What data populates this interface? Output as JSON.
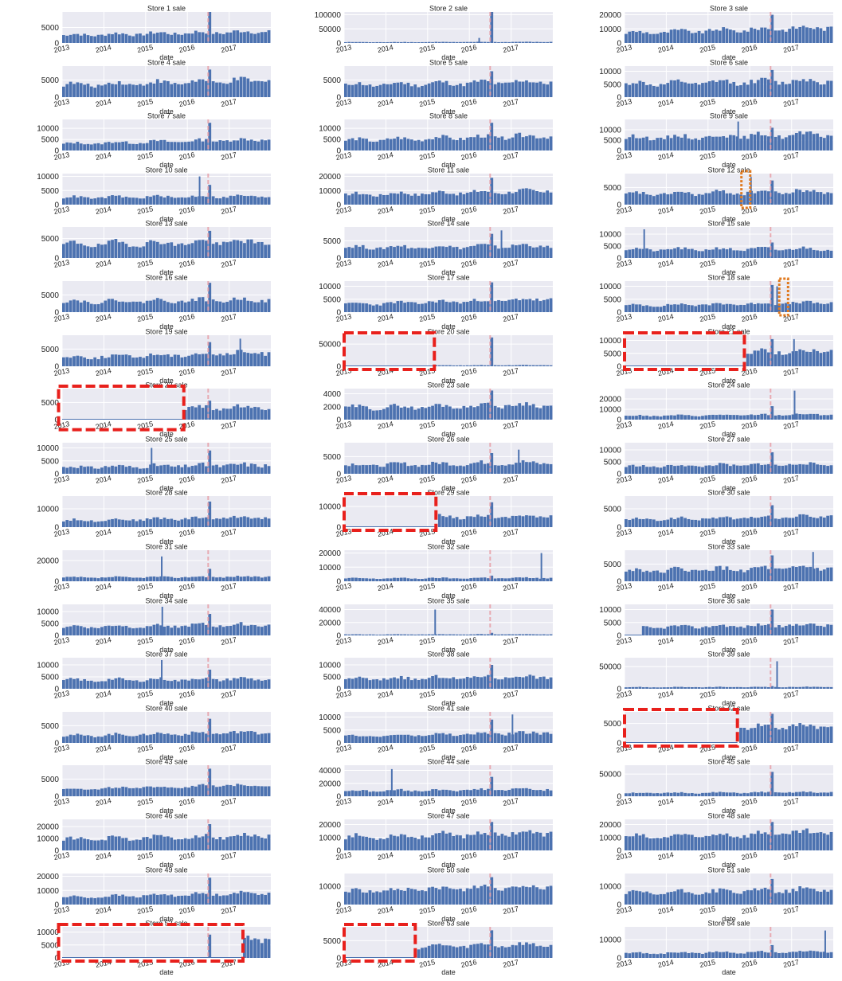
{
  "figure": {
    "colors": {
      "bar": "#4c72b0",
      "plot_bg": "#eaeaf2",
      "grid": "#ffffff",
      "marker": "#e8a0a8",
      "highlight_box": "#e8201c",
      "small_box": "#e07a20"
    }
  },
  "chart_data": {
    "type": "bar",
    "layout": {
      "rows": 18,
      "cols": 3
    },
    "xlabel": "date",
    "xticks": [
      "2013",
      "2014",
      "2015",
      "2016",
      "2017"
    ],
    "xlim": [
      "2013-01-01",
      "2017-12-31"
    ],
    "marker_date": "2016-07-01",
    "panels": [
      {
        "title": "Store 1 sale",
        "ylim": [
          0,
          10000
        ],
        "yticks": [
          0,
          5000
        ],
        "base": 2500,
        "trend": 0.5,
        "peak": 10000,
        "noise": 0.35,
        "spikes": []
      },
      {
        "title": "Store 2 sale",
        "ylim": [
          0,
          110000
        ],
        "yticks": [
          0,
          50000,
          100000
        ],
        "base": 3000,
        "trend": 0.3,
        "peak": 110000,
        "noise": 0.3,
        "spikes": [
          {
            "date": "2016-03-20",
            "value": 18000
          }
        ]
      },
      {
        "title": "Store 3 sale",
        "ylim": [
          0,
          22000
        ],
        "yticks": [
          0,
          10000,
          20000
        ],
        "base": 7000,
        "trend": 0.6,
        "peak": 20000,
        "noise": 0.3,
        "spikes": []
      },
      {
        "title": "Store 4 sale",
        "ylim": [
          0,
          9000
        ],
        "yticks": [
          0,
          5000
        ],
        "base": 3500,
        "trend": 0.4,
        "peak": 8000,
        "noise": 0.3,
        "spikes": []
      },
      {
        "title": "Store 5 sale",
        "ylim": [
          0,
          9000
        ],
        "yticks": [
          0,
          5000
        ],
        "base": 3500,
        "trend": 0.3,
        "peak": 7500,
        "noise": 0.3,
        "spikes": []
      },
      {
        "title": "Store 6 sale",
        "ylim": [
          0,
          12000
        ],
        "yticks": [
          0,
          5000,
          10000
        ],
        "base": 5000,
        "trend": 0.3,
        "peak": 10500,
        "noise": 0.3,
        "spikes": []
      },
      {
        "title": "Store 7 sale",
        "ylim": [
          0,
          14000
        ],
        "yticks": [
          0,
          5000,
          10000
        ],
        "base": 3000,
        "trend": 0.7,
        "peak": 12500,
        "noise": 0.3,
        "spikes": []
      },
      {
        "title": "Store 8 sale",
        "ylim": [
          0,
          14000
        ],
        "yticks": [
          0,
          5000,
          10000
        ],
        "base": 4500,
        "trend": 0.5,
        "peak": 12500,
        "noise": 0.3,
        "spikes": []
      },
      {
        "title": "Store 9 sale",
        "ylim": [
          0,
          15000
        ],
        "yticks": [
          0,
          5000,
          10000
        ],
        "base": 6000,
        "trend": 0.3,
        "peak": 11000,
        "noise": 0.3,
        "spikes": [
          {
            "date": "2015-09-15",
            "value": 14000
          }
        ]
      },
      {
        "title": "Store 10 sale",
        "ylim": [
          0,
          11000
        ],
        "yticks": [
          0,
          5000,
          10000
        ],
        "base": 2500,
        "trend": 0.2,
        "peak": 7000,
        "noise": 0.3,
        "spikes": [
          {
            "date": "2016-04-10",
            "value": 10000
          }
        ]
      },
      {
        "title": "Store 11 sale",
        "ylim": [
          0,
          22000
        ],
        "yticks": [
          0,
          10000,
          20000
        ],
        "base": 7000,
        "trend": 0.4,
        "peak": 19000,
        "noise": 0.3,
        "spikes": []
      },
      {
        "title": "Store 12 sale",
        "ylim": [
          0,
          9000
        ],
        "yticks": [
          0,
          5000
        ],
        "base": 3000,
        "trend": 0.3,
        "peak": 7000,
        "noise": 0.3,
        "spikes": [
          {
            "date": "2016-01-05",
            "value": 8000
          }
        ]
      },
      {
        "title": "Store 13 sale",
        "ylim": [
          0,
          8000
        ],
        "yticks": [
          0,
          5000
        ],
        "base": 3500,
        "trend": 0.2,
        "peak": 7000,
        "noise": 0.35,
        "spikes": []
      },
      {
        "title": "Store 14 sale",
        "ylim": [
          0,
          9000
        ],
        "yticks": [
          0,
          5000
        ],
        "base": 3000,
        "trend": 0.2,
        "peak": 7000,
        "noise": 0.3,
        "spikes": [
          {
            "date": "2016-10-01",
            "value": 8000
          }
        ]
      },
      {
        "title": "Store 15 sale",
        "ylim": [
          0,
          13000
        ],
        "yticks": [
          0,
          5000,
          10000
        ],
        "base": 3500,
        "trend": 0.1,
        "peak": 6500,
        "noise": 0.3,
        "spikes": [
          {
            "date": "2013-06-15",
            "value": 12000
          }
        ]
      },
      {
        "title": "Store 16 sale",
        "ylim": [
          0,
          9000
        ],
        "yticks": [
          0,
          5000
        ],
        "base": 3000,
        "trend": 0.2,
        "peak": 8500,
        "noise": 0.3,
        "spikes": []
      },
      {
        "title": "Store 17 sale",
        "ylim": [
          0,
          12000
        ],
        "yticks": [
          0,
          5000,
          10000
        ],
        "base": 3000,
        "trend": 0.7,
        "peak": 11500,
        "noise": 0.3,
        "spikes": []
      },
      {
        "title": "Store 18 sale",
        "ylim": [
          0,
          12000
        ],
        "yticks": [
          0,
          5000,
          10000
        ],
        "base": 2500,
        "trend": 0.5,
        "peak": 10500,
        "noise": 0.3,
        "spikes": [
          {
            "date": "2016-08-20",
            "value": 10000
          }
        ]
      },
      {
        "title": "Store 19 sale",
        "ylim": [
          0,
          9000
        ],
        "yticks": [
          0,
          5000
        ],
        "base": 2500,
        "trend": 0.6,
        "peak": 7000,
        "noise": 0.35,
        "spikes": [
          {
            "date": "2017-04-01",
            "value": 8000
          }
        ]
      },
      {
        "title": "Store 20 sale",
        "ylim": [
          0,
          70000
        ],
        "yticks": [
          0,
          50000
        ],
        "base": 2000,
        "trend": 0.3,
        "peak": 65000,
        "noise": 0.3,
        "start": "2015-03-01",
        "spikes": []
      },
      {
        "title": "Store 21 sale",
        "ylim": [
          0,
          12000
        ],
        "yticks": [
          0,
          5000,
          10000
        ],
        "base": 5000,
        "trend": 0.2,
        "peak": 10500,
        "noise": 0.3,
        "start": "2015-11-15",
        "spikes": [
          {
            "date": "2017-01-15",
            "value": 10500
          }
        ]
      },
      {
        "title": "Store 22 sale",
        "ylim": [
          0,
          9000
        ],
        "yticks": [
          0,
          5000
        ],
        "base": 3000,
        "trend": 0.2,
        "peak": 5500,
        "noise": 0.3,
        "start": "2015-12-01",
        "spikes": []
      },
      {
        "title": "Store 23 sale",
        "ylim": [
          0,
          4800
        ],
        "yticks": [
          0,
          2000,
          4000
        ],
        "base": 1800,
        "trend": 0.3,
        "peak": 4500,
        "noise": 0.3,
        "spikes": []
      },
      {
        "title": "Store 24 sale",
        "ylim": [
          0,
          30000
        ],
        "yticks": [
          0,
          10000,
          20000
        ],
        "base": 3500,
        "trend": 0.5,
        "peak": 13000,
        "noise": 0.3,
        "spikes": [
          {
            "date": "2017-01-20",
            "value": 28000
          }
        ]
      },
      {
        "title": "Store 25 sale",
        "ylim": [
          0,
          12000
        ],
        "yticks": [
          0,
          5000,
          10000
        ],
        "base": 2500,
        "trend": 0.4,
        "peak": 9000,
        "noise": 0.5,
        "spikes": [
          {
            "date": "2015-02-15",
            "value": 10000
          }
        ]
      },
      {
        "title": "Store 26 sale",
        "ylim": [
          0,
          9000
        ],
        "yticks": [
          0,
          5000
        ],
        "base": 2500,
        "trend": 0.3,
        "peak": 6000,
        "noise": 0.35,
        "spikes": [
          {
            "date": "2017-03-01",
            "value": 7000
          }
        ]
      },
      {
        "title": "Store 27 sale",
        "ylim": [
          0,
          13000
        ],
        "yticks": [
          0,
          5000,
          10000
        ],
        "base": 3000,
        "trend": 0.4,
        "peak": 9000,
        "noise": 0.3,
        "spikes": []
      },
      {
        "title": "Store 28 sale",
        "ylim": [
          0,
          17000
        ],
        "yticks": [
          0,
          10000
        ],
        "base": 3500,
        "trend": 0.6,
        "peak": 14000,
        "noise": 0.3,
        "spikes": []
      },
      {
        "title": "Store 29 sale",
        "ylim": [
          0,
          15000
        ],
        "yticks": [
          0,
          10000
        ],
        "base": 4500,
        "trend": 0.2,
        "peak": 12000,
        "noise": 0.3,
        "start": "2015-03-15",
        "spikes": []
      },
      {
        "title": "Store 30 sale",
        "ylim": [
          0,
          8500
        ],
        "yticks": [
          0,
          5000
        ],
        "base": 2000,
        "trend": 0.5,
        "peak": 6000,
        "noise": 0.3,
        "spikes": []
      },
      {
        "title": "Store 31 sale",
        "ylim": [
          0,
          30000
        ],
        "yticks": [
          0,
          20000
        ],
        "base": 3500,
        "trend": 0.3,
        "peak": 12000,
        "noise": 0.3,
        "spikes": [
          {
            "date": "2015-05-15",
            "value": 24000
          }
        ]
      },
      {
        "title": "Store 32 sale",
        "ylim": [
          0,
          22000
        ],
        "yticks": [
          0,
          10000,
          20000
        ],
        "base": 2000,
        "trend": 0.2,
        "peak": 4000,
        "noise": 0.3,
        "spikes": [
          {
            "date": "2017-09-15",
            "value": 20000
          }
        ]
      },
      {
        "title": "Store 33 sale",
        "ylim": [
          0,
          9000
        ],
        "yticks": [
          0,
          5000
        ],
        "base": 3000,
        "trend": 0.3,
        "peak": 7500,
        "noise": 0.35,
        "spikes": [
          {
            "date": "2017-07-01",
            "value": 8500
          }
        ]
      },
      {
        "title": "Store 34 sale",
        "ylim": [
          0,
          13000
        ],
        "yticks": [
          0,
          5000,
          10000
        ],
        "base": 3500,
        "trend": 0.3,
        "peak": 9000,
        "noise": 0.3,
        "spikes": [
          {
            "date": "2015-05-20",
            "value": 12000
          }
        ]
      },
      {
        "title": "Store 35 sale",
        "ylim": [
          0,
          48000
        ],
        "yticks": [
          0,
          20000,
          40000
        ],
        "base": 1500,
        "trend": 0.2,
        "peak": 4000,
        "noise": 0.3,
        "spikes": [
          {
            "date": "2015-03-01",
            "value": 40000
          }
        ]
      },
      {
        "title": "Store 36 sale",
        "ylim": [
          0,
          12000
        ],
        "yticks": [
          0,
          5000,
          10000
        ],
        "base": 3000,
        "trend": 0.4,
        "peak": 10000,
        "noise": 0.3,
        "start": "2013-06-01",
        "spikes": []
      },
      {
        "title": "Store 37 sale",
        "ylim": [
          0,
          13000
        ],
        "yticks": [
          0,
          5000,
          10000
        ],
        "base": 3500,
        "trend": 0.2,
        "peak": 8000,
        "noise": 0.3,
        "spikes": [
          {
            "date": "2015-05-15",
            "value": 12000
          }
        ]
      },
      {
        "title": "Store 38 sale",
        "ylim": [
          0,
          13000
        ],
        "yticks": [
          0,
          5000,
          10000
        ],
        "base": 4000,
        "trend": 0.3,
        "peak": 10000,
        "noise": 0.3,
        "spikes": []
      },
      {
        "title": "Store 39 sale",
        "ylim": [
          0,
          70000
        ],
        "yticks": [
          0,
          50000
        ],
        "base": 3500,
        "trend": 0.2,
        "peak": 6000,
        "noise": 0.3,
        "spikes": [
          {
            "date": "2016-08-20",
            "value": 62000
          }
        ]
      },
      {
        "title": "Store 40 sale",
        "ylim": [
          0,
          9000
        ],
        "yticks": [
          0,
          5000
        ],
        "base": 2000,
        "trend": 0.6,
        "peak": 7000,
        "noise": 0.3,
        "spikes": []
      },
      {
        "title": "Store 41 sale",
        "ylim": [
          0,
          12000
        ],
        "yticks": [
          0,
          5000,
          10000
        ],
        "base": 2500,
        "trend": 0.6,
        "peak": 9000,
        "noise": 0.3,
        "spikes": [
          {
            "date": "2017-01-05",
            "value": 11000
          }
        ]
      },
      {
        "title": "Store 42 sale",
        "ylim": [
          0,
          8000
        ],
        "yticks": [
          0,
          5000
        ],
        "base": 3500,
        "trend": 0.3,
        "peak": 7500,
        "noise": 0.3,
        "start": "2015-09-15",
        "spikes": []
      },
      {
        "title": "Store 43 sale",
        "ylim": [
          0,
          9000
        ],
        "yticks": [
          0,
          5000
        ],
        "base": 2000,
        "trend": 0.7,
        "peak": 8000,
        "noise": 0.25,
        "spikes": []
      },
      {
        "title": "Store 44 sale",
        "ylim": [
          0,
          48000
        ],
        "yticks": [
          0,
          20000,
          40000
        ],
        "base": 8000,
        "trend": 0.4,
        "peak": 30000,
        "noise": 0.3,
        "spikes": [
          {
            "date": "2014-02-15",
            "value": 42000
          }
        ]
      },
      {
        "title": "Store 45 sale",
        "ylim": [
          0,
          70000
        ],
        "yticks": [
          0,
          50000
        ],
        "base": 7000,
        "trend": 0.3,
        "peak": 55000,
        "noise": 0.3,
        "spikes": []
      },
      {
        "title": "Store 46 sale",
        "ylim": [
          0,
          26000
        ],
        "yticks": [
          0,
          10000,
          20000
        ],
        "base": 9000,
        "trend": 0.4,
        "peak": 22000,
        "noise": 0.3,
        "spikes": []
      },
      {
        "title": "Store 47 sale",
        "ylim": [
          0,
          24000
        ],
        "yticks": [
          0,
          10000,
          20000
        ],
        "base": 10000,
        "trend": 0.4,
        "peak": 22000,
        "noise": 0.3,
        "spikes": []
      },
      {
        "title": "Store 48 sale",
        "ylim": [
          0,
          24000
        ],
        "yticks": [
          0,
          10000,
          20000
        ],
        "base": 10000,
        "trend": 0.4,
        "peak": 22000,
        "noise": 0.3,
        "spikes": []
      },
      {
        "title": "Store 49 sale",
        "ylim": [
          0,
          22000
        ],
        "yticks": [
          0,
          10000,
          20000
        ],
        "base": 5000,
        "trend": 0.7,
        "peak": 19000,
        "noise": 0.25,
        "spikes": []
      },
      {
        "title": "Store 50 sale",
        "ylim": [
          0,
          17000
        ],
        "yticks": [
          0,
          10000
        ],
        "base": 7000,
        "trend": 0.5,
        "peak": 15000,
        "noise": 0.3,
        "spikes": []
      },
      {
        "title": "Store 51 sale",
        "ylim": [
          0,
          17000
        ],
        "yticks": [
          0,
          10000
        ],
        "base": 6000,
        "trend": 0.4,
        "peak": 14000,
        "noise": 0.3,
        "spikes": []
      },
      {
        "title": "Store 52 sale",
        "ylim": [
          0,
          12000
        ],
        "yticks": [
          0,
          5000,
          10000
        ],
        "base": 7000,
        "trend": 0.1,
        "peak": 9000,
        "noise": 0.3,
        "start": "2017-05-01",
        "spikes": []
      },
      {
        "title": "Store 53 sale",
        "ylim": [
          0,
          9000
        ],
        "yticks": [
          0,
          5000
        ],
        "base": 3000,
        "trend": 0.3,
        "peak": 8000,
        "noise": 0.3,
        "start": "2014-09-15",
        "spikes": []
      },
      {
        "title": "Store 54 sale",
        "ylim": [
          0,
          17000
        ],
        "yticks": [
          0,
          10000
        ],
        "base": 2500,
        "trend": 0.4,
        "peak": 7000,
        "noise": 0.3,
        "spikes": [
          {
            "date": "2017-10-15",
            "value": 15000
          }
        ]
      }
    ],
    "highlights": [
      {
        "panel": 20,
        "style": "dashed-red",
        "from": "2013-01-01",
        "to": "2015-03-01",
        "yfrom": 0,
        "yto": 70000
      },
      {
        "panel": 21,
        "style": "dashed-red",
        "from": "2013-01-01",
        "to": "2015-11-15",
        "yfrom": 0,
        "yto": 12000
      },
      {
        "panel": 22,
        "style": "dashed-red",
        "from": "2012-12-01",
        "to": "2015-12-01",
        "yfrom": -2000,
        "yto": 9000
      },
      {
        "panel": 29,
        "style": "dashed-red",
        "from": "2013-01-01",
        "to": "2015-03-15",
        "yfrom": 0,
        "yto": 15000
      },
      {
        "panel": 42,
        "style": "dashed-red",
        "from": "2013-01-01",
        "to": "2015-09-15",
        "yfrom": 0,
        "yto": 8000
      },
      {
        "panel": 52,
        "style": "dashed-red",
        "from": "2012-12-01",
        "to": "2017-05-01",
        "yfrom": 0,
        "yto": 12000
      },
      {
        "panel": 53,
        "style": "dashed-red",
        "from": "2013-01-01",
        "to": "2014-09-15",
        "yfrom": 0,
        "yto": 9000
      },
      {
        "panel": 12,
        "style": "dotted-orange",
        "from": "2015-10-20",
        "to": "2016-01-05",
        "yfrom": 0,
        "yto": 9000
      },
      {
        "panel": 18,
        "style": "dotted-orange",
        "from": "2016-09-15",
        "to": "2016-12-01",
        "yfrom": 0,
        "yto": 12000
      }
    ]
  }
}
